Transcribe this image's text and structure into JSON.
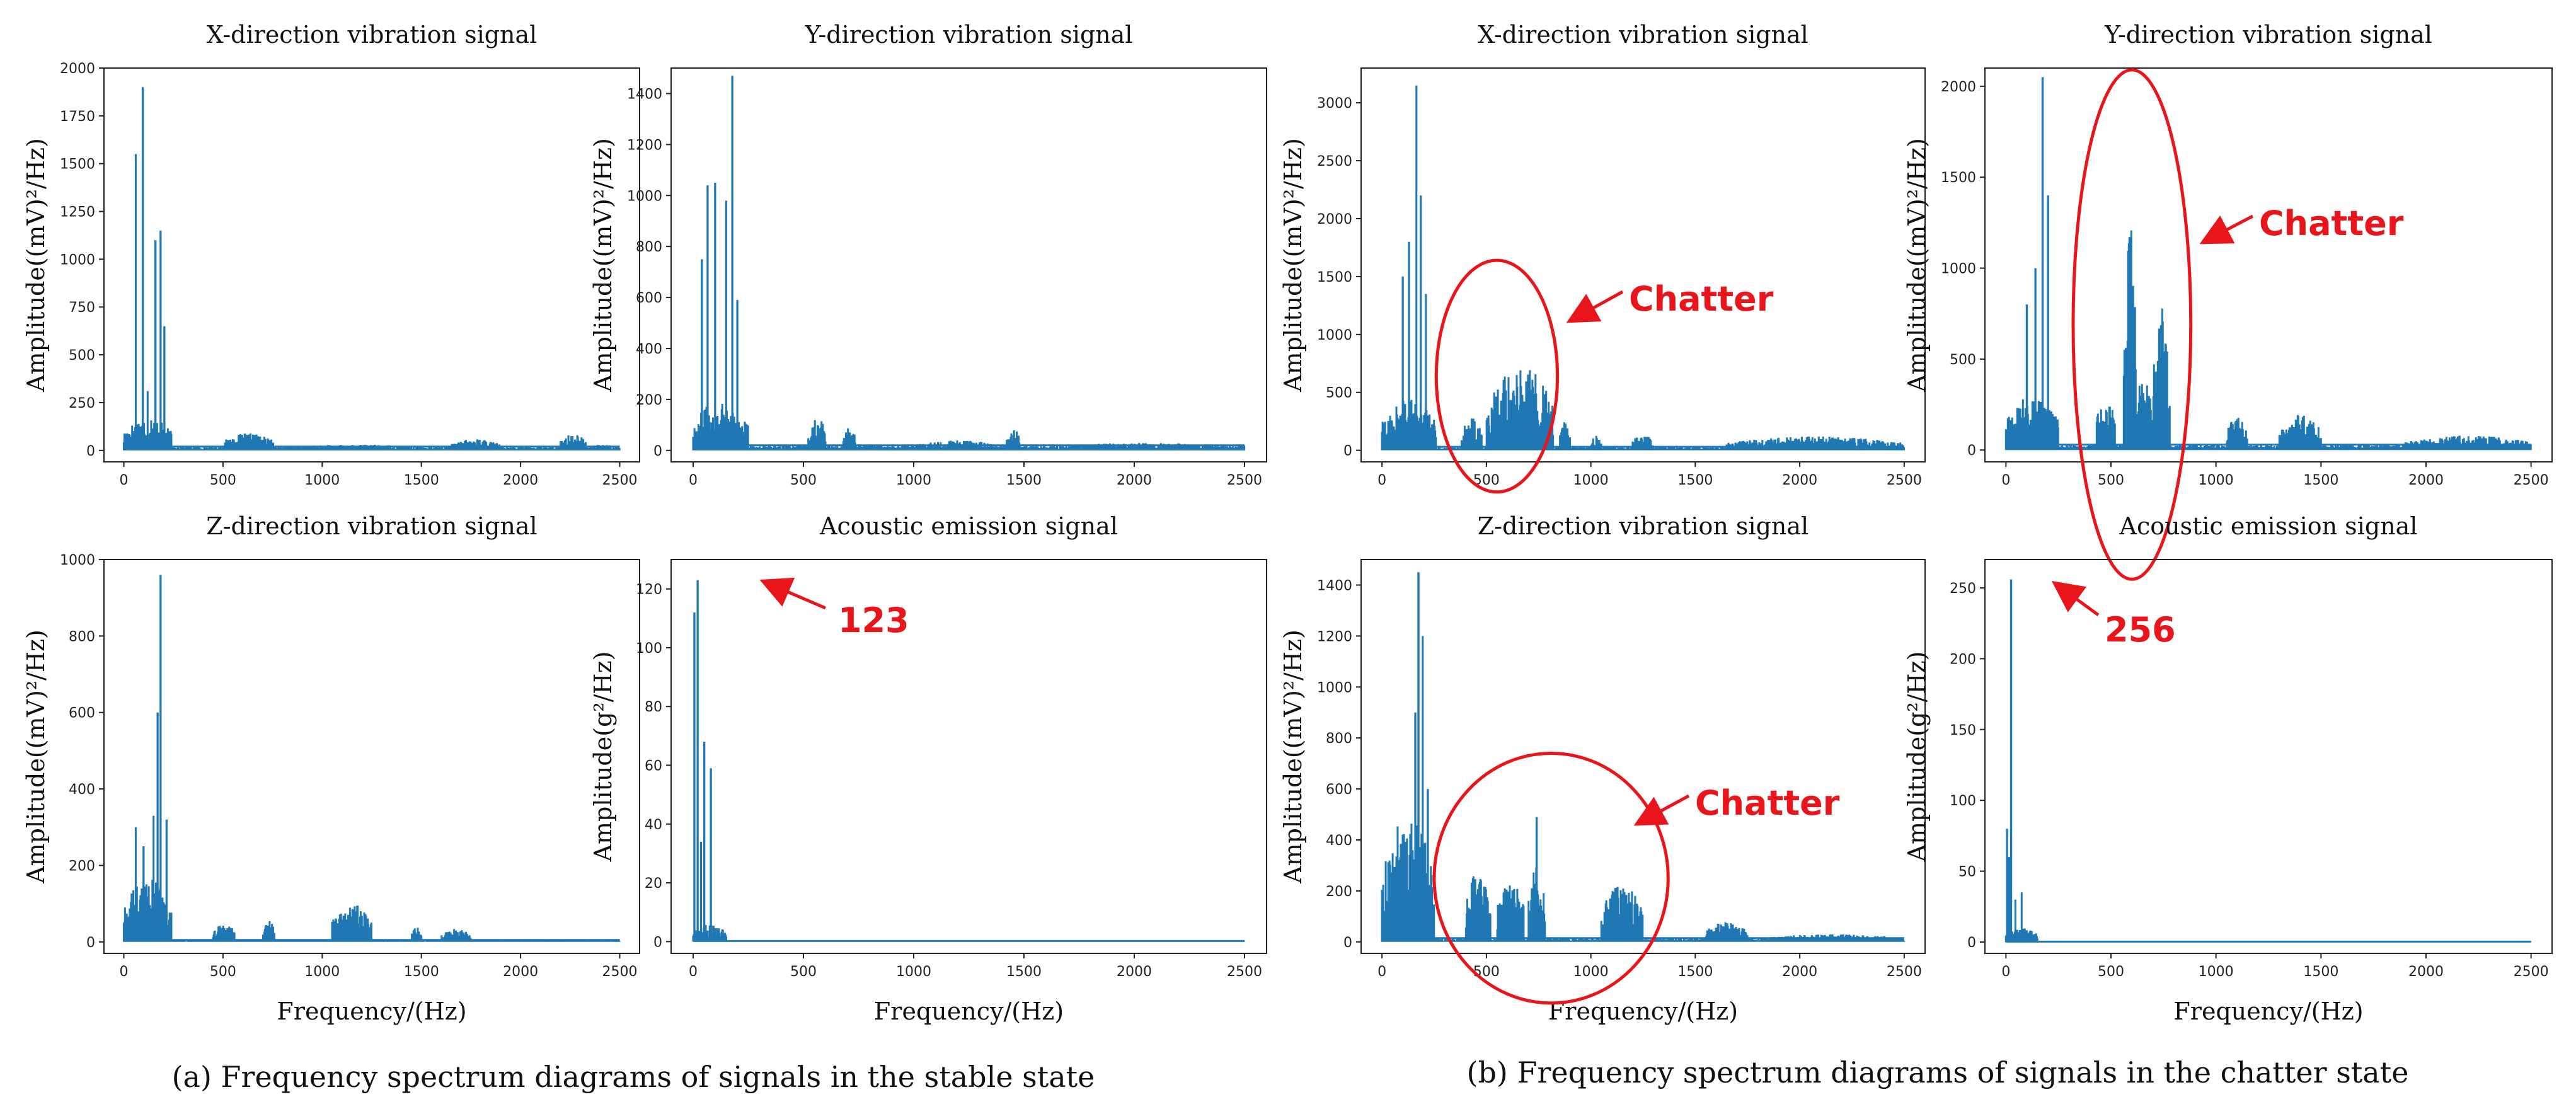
{
  "colors": {
    "series": "#1f77b4",
    "annotation": "#e8151b",
    "axis": "#222222"
  },
  "captions": {
    "stable": "(a) Frequency spectrum diagrams of signals in the stable state",
    "chatter": "(b) Frequency spectrum diagrams of signals in the chatter state"
  },
  "chart_data": [
    {
      "id": "stable-x",
      "group": "stable",
      "type": "line",
      "title": "X-direction vibration signal",
      "ylabel": "Amplitude((mV)²/Hz)",
      "xlabel": "",
      "xlim": [
        -100,
        2600
      ],
      "ylim": [
        -60,
        2000
      ],
      "xticks": [
        0,
        500,
        1000,
        1500,
        2000,
        2500
      ],
      "yticks": [
        0,
        250,
        500,
        750,
        1000,
        1250,
        1500,
        1750,
        2000
      ],
      "peaks": [
        [
          60,
          1550
        ],
        [
          95,
          1900
        ],
        [
          120,
          310
        ],
        [
          160,
          1100
        ],
        [
          185,
          1150
        ],
        [
          205,
          650
        ]
      ],
      "bands": [
        [
          0,
          240,
          180
        ],
        [
          500,
          760,
          90
        ],
        [
          760,
          1600,
          30
        ],
        [
          1650,
          1900,
          60
        ],
        [
          2200,
          2330,
          90
        ],
        [
          2330,
          2500,
          30
        ]
      ],
      "baseline": 20,
      "annotations": []
    },
    {
      "id": "stable-y",
      "group": "stable",
      "type": "line",
      "title": "Y-direction vibration signal",
      "ylabel": "Amplitude((mV)²/Hz)",
      "xlabel": "",
      "xlim": [
        -100,
        2600
      ],
      "ylim": [
        -45,
        1500
      ],
      "xticks": [
        0,
        500,
        1000,
        1500,
        2000,
        2500
      ],
      "yticks": [
        0,
        200,
        400,
        600,
        800,
        1000,
        1200,
        1400
      ],
      "peaks": [
        [
          40,
          750
        ],
        [
          65,
          1040
        ],
        [
          100,
          1050
        ],
        [
          150,
          980
        ],
        [
          178,
          1470
        ],
        [
          200,
          590
        ]
      ],
      "bands": [
        [
          0,
          250,
          200
        ],
        [
          520,
          600,
          140
        ],
        [
          680,
          740,
          90
        ],
        [
          1000,
          1400,
          40
        ],
        [
          1420,
          1480,
          90
        ],
        [
          1600,
          2500,
          30
        ]
      ],
      "baseline": 20,
      "annotations": []
    },
    {
      "id": "stable-z",
      "group": "stable",
      "type": "line",
      "title": "Z-direction vibration signal",
      "ylabel": "Amplitude((mV)²/Hz)",
      "xlabel": "Frequency/(Hz)",
      "xlim": [
        -100,
        2600
      ],
      "ylim": [
        -30,
        1000
      ],
      "xticks": [
        0,
        500,
        1000,
        1500,
        2000,
        2500
      ],
      "yticks": [
        0,
        200,
        400,
        600,
        800,
        1000
      ],
      "peaks": [
        [
          60,
          300
        ],
        [
          100,
          250
        ],
        [
          150,
          330
        ],
        [
          170,
          600
        ],
        [
          185,
          960
        ],
        [
          215,
          320
        ]
      ],
      "bands": [
        [
          0,
          240,
          170
        ],
        [
          450,
          560,
          50
        ],
        [
          700,
          760,
          60
        ],
        [
          1050,
          1250,
          100
        ],
        [
          1450,
          1500,
          40
        ],
        [
          1600,
          1750,
          35
        ],
        [
          1750,
          2500,
          8
        ]
      ],
      "baseline": 5,
      "annotations": []
    },
    {
      "id": "stable-ae",
      "group": "stable",
      "type": "line",
      "title": "Acoustic emission signal",
      "ylabel": "Amplitude(g²/Hz)",
      "xlabel": "Frequency/(Hz)",
      "xlim": [
        -100,
        2600
      ],
      "ylim": [
        -4,
        130
      ],
      "xticks": [
        0,
        500,
        1000,
        1500,
        2000,
        2500
      ],
      "yticks": [
        0,
        20,
        40,
        60,
        80,
        100,
        120
      ],
      "peaks": [
        [
          5,
          112
        ],
        [
          20,
          123
        ],
        [
          35,
          34
        ],
        [
          50,
          68
        ],
        [
          80,
          59
        ],
        [
          120,
          3
        ]
      ],
      "bands": [
        [
          0,
          150,
          6
        ]
      ],
      "baseline": 0.2,
      "annotations": [
        {
          "text": "123",
          "target": [
            20,
            123
          ]
        }
      ]
    },
    {
      "id": "chatter-x",
      "group": "chatter",
      "type": "line",
      "title": "X-direction vibration signal",
      "ylabel": "Amplitude((mV)²/Hz)",
      "xlabel": "",
      "xlim": [
        -100,
        2600
      ],
      "ylim": [
        -100,
        3300
      ],
      "xticks": [
        0,
        500,
        1000,
        1500,
        2000,
        2500
      ],
      "yticks": [
        0,
        500,
        1000,
        1500,
        2000,
        2500,
        3000
      ],
      "peaks": [
        [
          100,
          1500
        ],
        [
          130,
          1800
        ],
        [
          165,
          3150
        ],
        [
          185,
          2200
        ],
        [
          210,
          1350
        ]
      ],
      "bands": [
        [
          0,
          260,
          450
        ],
        [
          380,
          480,
          280
        ],
        [
          500,
          820,
          750
        ],
        [
          850,
          900,
          250
        ],
        [
          1000,
          1050,
          130
        ],
        [
          1200,
          1300,
          150
        ],
        [
          1650,
          2500,
          120
        ]
      ],
      "baseline": 30,
      "annotations": [
        {
          "text": "Chatter",
          "type": "ellipse",
          "center": [
            550,
            640
          ],
          "radius": [
            290,
            1000
          ]
        }
      ]
    },
    {
      "id": "chatter-y",
      "group": "chatter",
      "type": "line",
      "title": "Y-direction vibration signal",
      "ylabel": "Amplitude((mV)²/Hz)",
      "xlabel": "",
      "xlim": [
        -100,
        2600
      ],
      "ylim": [
        -65,
        2100
      ],
      "xticks": [
        0,
        500,
        1000,
        1500,
        2000,
        2500
      ],
      "yticks": [
        0,
        500,
        1000,
        1500,
        2000
      ],
      "peaks": [
        [
          100,
          800
        ],
        [
          140,
          1000
        ],
        [
          175,
          2050
        ],
        [
          200,
          1400
        ]
      ],
      "bands": [
        [
          0,
          250,
          300
        ],
        [
          430,
          520,
          300
        ],
        [
          560,
          620,
          1250
        ],
        [
          620,
          700,
          450
        ],
        [
          700,
          780,
          800
        ],
        [
          1050,
          1150,
          200
        ],
        [
          1300,
          1500,
          200
        ],
        [
          1900,
          2500,
          80
        ]
      ],
      "baseline": 30,
      "annotations": [
        {
          "text": "Chatter",
          "type": "ellipse",
          "center": [
            600,
            690
          ],
          "radius": [
            280,
            1400
          ]
        }
      ]
    },
    {
      "id": "chatter-z",
      "group": "chatter",
      "type": "line",
      "title": "Z-direction vibration signal",
      "ylabel": "Amplitude((mV)²/Hz)",
      "xlabel": "Frequency/(Hz)",
      "xlim": [
        -100,
        2600
      ],
      "ylim": [
        -45,
        1500
      ],
      "xticks": [
        0,
        500,
        1000,
        1500,
        2000,
        2500
      ],
      "yticks": [
        0,
        200,
        400,
        600,
        800,
        1000,
        1200,
        1400
      ],
      "peaks": [
        [
          160,
          900
        ],
        [
          175,
          1450
        ],
        [
          195,
          1200
        ],
        [
          220,
          600
        ],
        [
          740,
          490
        ]
      ],
      "bands": [
        [
          0,
          250,
          500
        ],
        [
          400,
          520,
          280
        ],
        [
          550,
          680,
          250
        ],
        [
          700,
          780,
          300
        ],
        [
          1050,
          1250,
          230
        ],
        [
          1550,
          1750,
          80
        ],
        [
          1800,
          2500,
          30
        ]
      ],
      "baseline": 15,
      "annotations": [
        {
          "text": "Chatter",
          "type": "ellipse",
          "center": [
            810,
            250
          ],
          "radius": [
            560,
            490
          ]
        }
      ]
    },
    {
      "id": "chatter-ae",
      "group": "chatter",
      "type": "line",
      "title": "Acoustic emission signal",
      "ylabel": "Amplitude(g²/Hz)",
      "xlabel": "Frequency/(Hz)",
      "xlim": [
        -100,
        2600
      ],
      "ylim": [
        -8,
        270
      ],
      "xticks": [
        0,
        500,
        1000,
        1500,
        2000,
        2500
      ],
      "yticks": [
        0,
        50,
        100,
        150,
        200,
        250
      ],
      "peaks": [
        [
          5,
          80
        ],
        [
          15,
          60
        ],
        [
          25,
          256
        ],
        [
          45,
          30
        ],
        [
          75,
          35
        ]
      ],
      "bands": [
        [
          0,
          150,
          10
        ]
      ],
      "baseline": 0.3,
      "annotations": [
        {
          "text": "256",
          "target": [
            25,
            256
          ]
        }
      ]
    }
  ]
}
